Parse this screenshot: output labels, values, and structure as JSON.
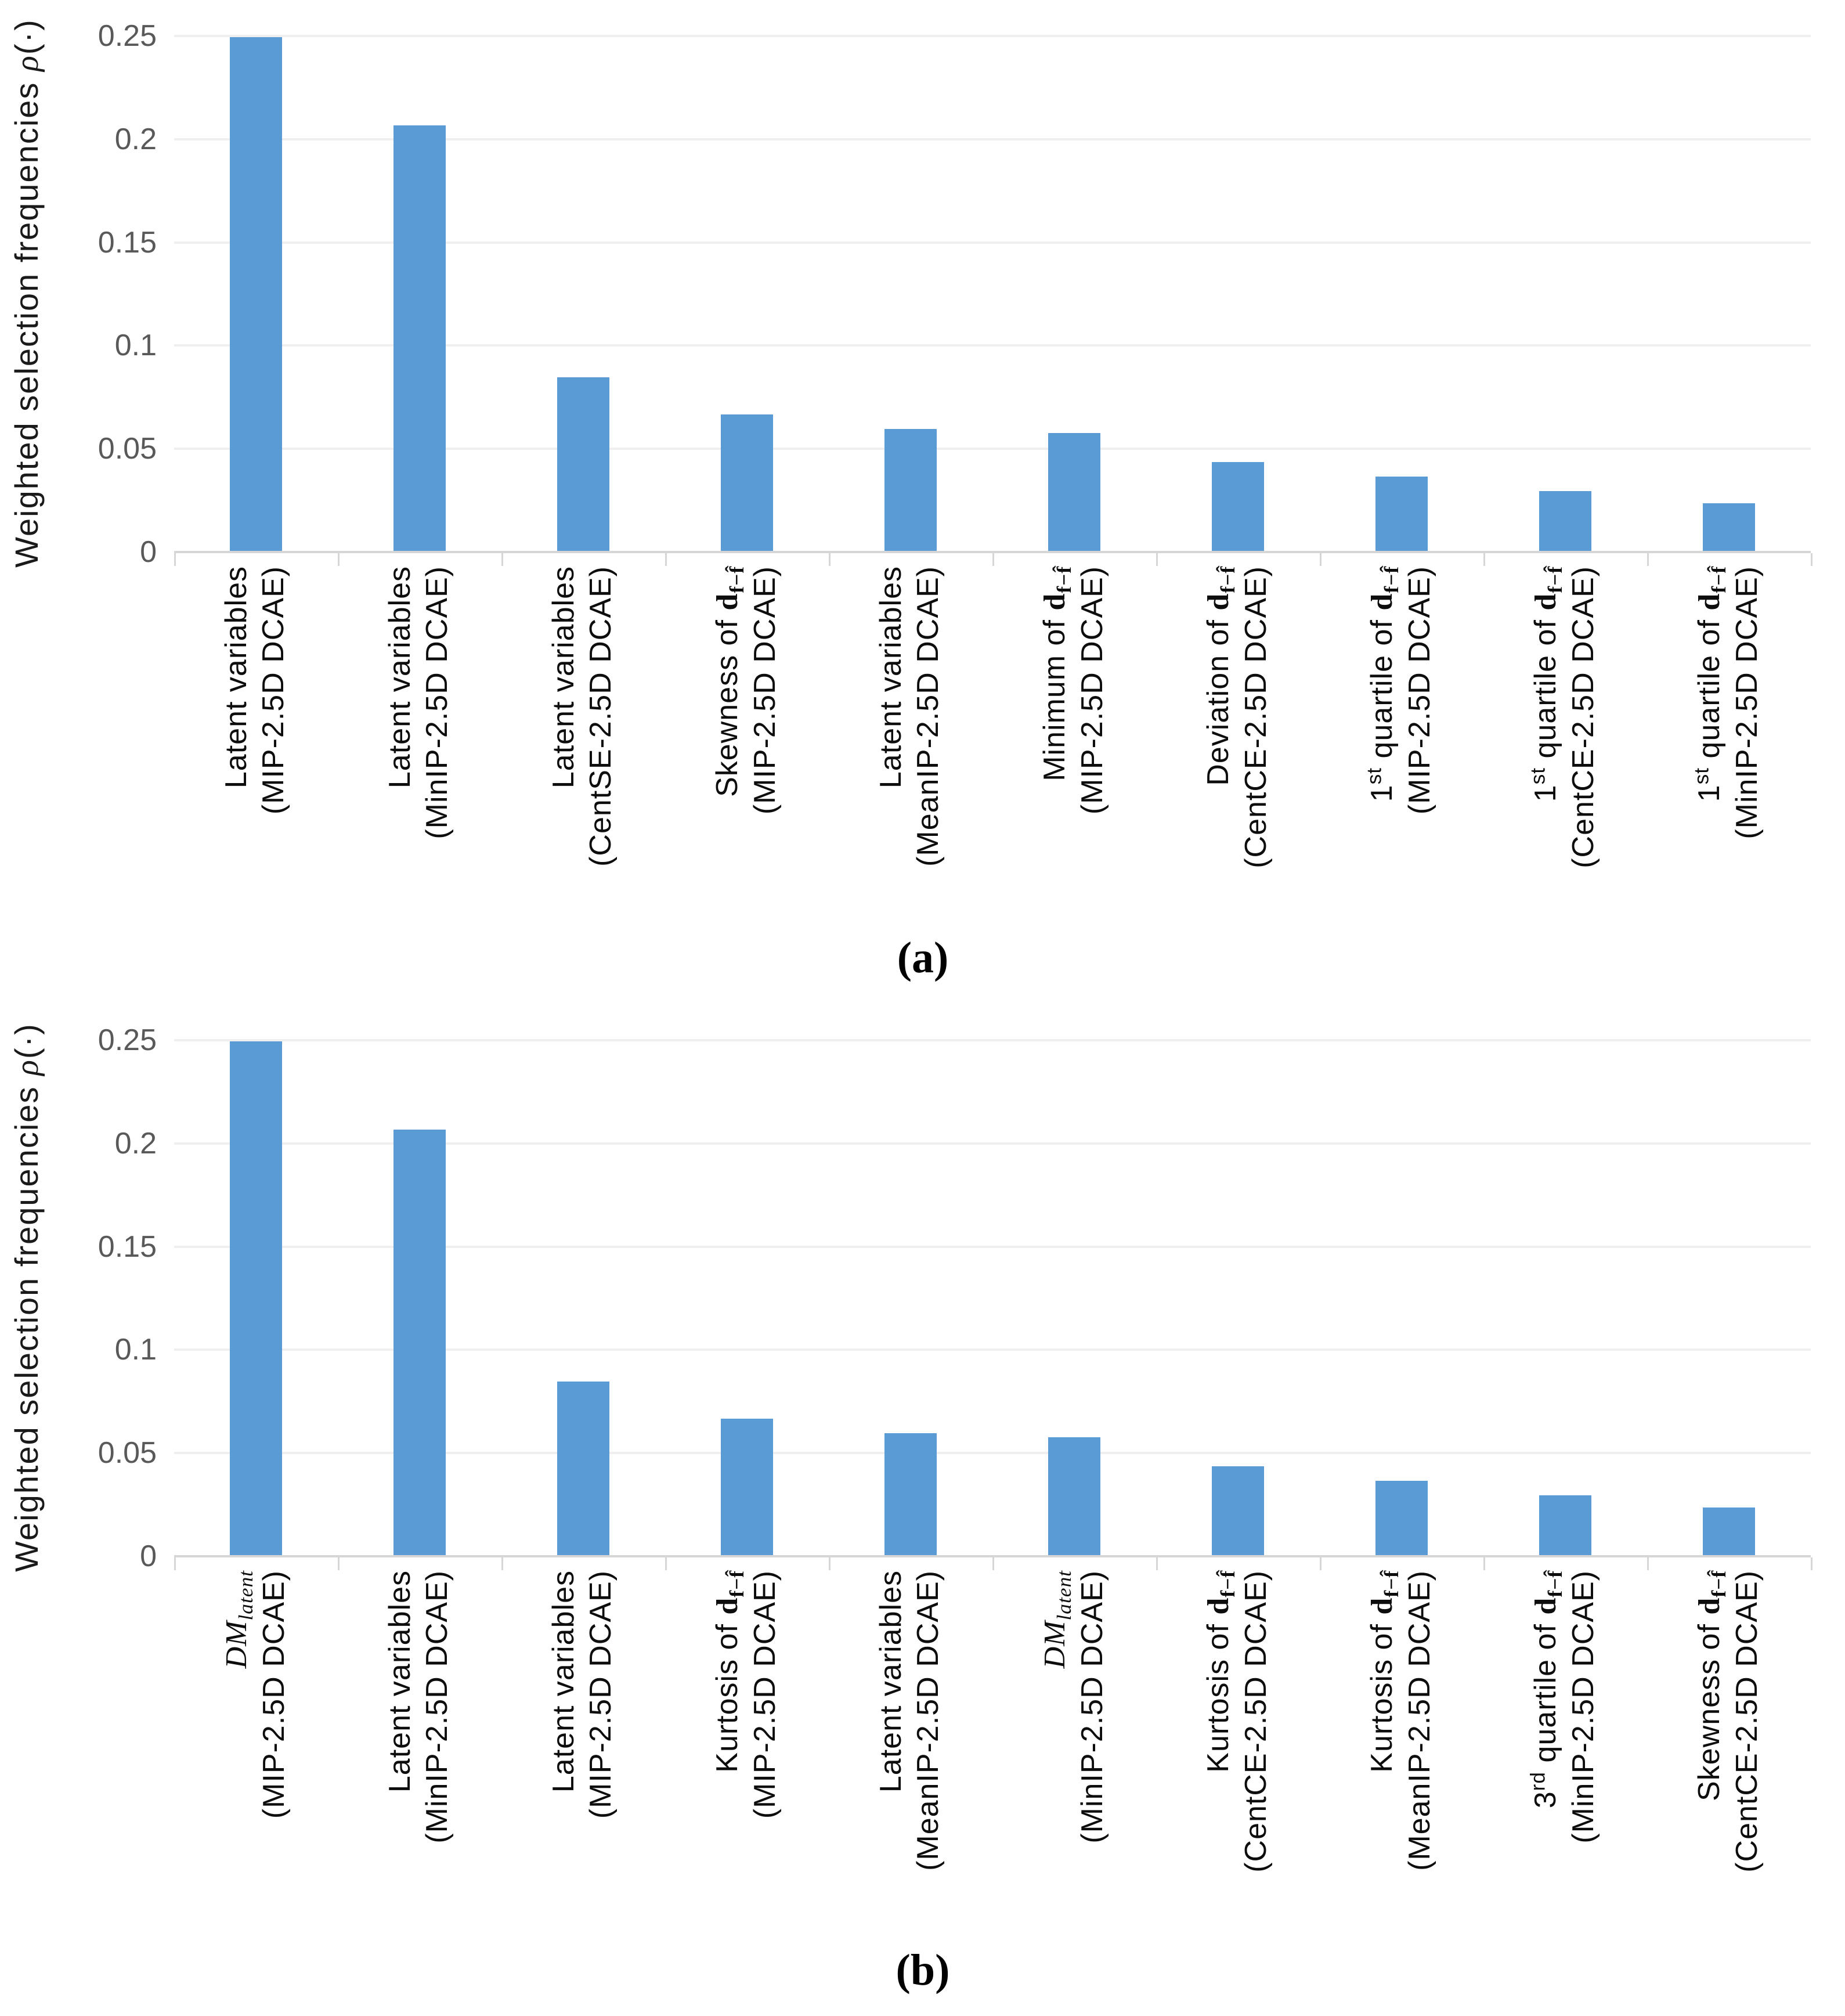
{
  "figure": {
    "ylabel_rich": "Weighted selection frequencies *ρ*(·)",
    "colors": {
      "bar": "#5B9BD5",
      "gridline": "#EFEFEF",
      "baseline": "#D6D6D6",
      "x_tick": "#D6D6D6",
      "ytick_text": "#595959",
      "ytitle_text": "#1A1A1A",
      "xlabel_text": "#0D0D0D",
      "caption_text": "#000000"
    },
    "yticks": [
      {
        "v": 0,
        "label": "0"
      },
      {
        "v": 0.05,
        "label": "0.05"
      },
      {
        "v": 0.1,
        "label": "0.1"
      },
      {
        "v": 0.15,
        "label": "0.15"
      },
      {
        "v": 0.2,
        "label": "0.2"
      },
      {
        "v": 0.25,
        "label": "0.25"
      }
    ]
  },
  "chart_data": [
    {
      "id": "a",
      "type": "bar",
      "caption": "(a)",
      "ylabel": "Weighted selection frequencies ρ(·)",
      "ylim": [
        0,
        0.25
      ],
      "grid": true,
      "legend": "none",
      "categories": [
        "Latent variables (MIP-2.5D DCAE)",
        "Latent variables (MinIP-2.5D DCAE)",
        "Latent variables (CentSE-2.5D DCAE)",
        "Skewness of d_(f−f̂) (MIP-2.5D DCAE)",
        "Latent variables (MeanIP-2.5D DCAE)",
        "Minimum of d_(f−f̂) (MIP-2.5D DCAE)",
        "Deviation of d_(f−f̂) (CentCE-2.5D DCAE)",
        "1st quartile of d_(f−f̂) (MIP-2.5D DCAE)",
        "1st quartile of d_(f−f̂) (CentCE-2.5D DCAE)",
        "1st quartile of d_(f−f̂) (MinIP-2.5D DCAE)"
      ],
      "category_lines_rich": [
        [
          "Latent variables",
          "(MIP-2.5D DCAE)"
        ],
        [
          "Latent variables",
          "(MinIP-2.5D DCAE)"
        ],
        [
          "Latent variables",
          "(CentSE-2.5D DCAE)"
        ],
        [
          "Skewness of **d**~**f−f̂**~",
          "(MIP-2.5D DCAE)"
        ],
        [
          "Latent variables",
          "(MeanIP-2.5D DCAE)"
        ],
        [
          "Minimum of **d**~**f−f̂**~",
          "(MIP-2.5D DCAE)"
        ],
        [
          "Deviation of **d**~**f−f̂**~",
          "(CentCE-2.5D DCAE)"
        ],
        [
          "1^st^ quartile of **d**~**f−f̂**~",
          "(MIP-2.5D DCAE)"
        ],
        [
          "1^st^ quartile of **d**~**f−f̂**~",
          "(CentCE-2.5D DCAE)"
        ],
        [
          "1^st^ quartile of **d**~**f−f̂**~",
          "(MinIP-2.5D DCAE)"
        ]
      ],
      "values": [
        0.249,
        0.206,
        0.084,
        0.066,
        0.059,
        0.057,
        0.043,
        0.036,
        0.029,
        0.023
      ]
    },
    {
      "id": "b",
      "type": "bar",
      "caption": "(b)",
      "ylabel": "Weighted selection frequencies ρ(·)",
      "ylim": [
        0,
        0.25
      ],
      "grid": true,
      "legend": "none",
      "categories": [
        "DM_latent (MIP-2.5D DCAE)",
        "Latent variables (MinIP-2.5D DCAE)",
        "Latent variables (MIP-2.5D DCAE)",
        "Kurtosis of d_(f−f̂) (MIP-2.5D DCAE)",
        "Latent variables (MeanIP-2.5D DCAE)",
        "DM_latent (MinIP-2.5D DCAE)",
        "Kurtosis of d_(f−f̂) (CentCE-2.5D DCAE)",
        "Kurtosis of d_(f−f̂) (MeanIP-2.5D DCAE)",
        "3rd quartile of d_(f−f̂) (MinIP-2.5D DCAE)",
        "Skewness of d_(f−f̂) (CentCE-2.5D DCAE)"
      ],
      "category_lines_rich": [
        [
          "*DM*~*latent*~",
          "(MIP-2.5D DCAE)"
        ],
        [
          "Latent variables",
          "(MinIP-2.5D DCAE)"
        ],
        [
          "Latent variables",
          "(MIP-2.5D DCAE)"
        ],
        [
          "Kurtosis of **d**~**f−f̂**~",
          "(MIP-2.5D DCAE)"
        ],
        [
          "Latent variables",
          "(MeanIP-2.5D DCAE)"
        ],
        [
          "*DM*~*latent*~",
          "(MinIP-2.5D DCAE)"
        ],
        [
          "Kurtosis of **d**~**f−f̂**~",
          "(CentCE-2.5D DCAE)"
        ],
        [
          "Kurtosis of **d**~**f−f̂**~",
          "(MeanIP-2.5D DCAE)"
        ],
        [
          "3^rd^ quartile of **d**~**f−f̂**~",
          "(MinIP-2.5D DCAE)"
        ],
        [
          "Skewness of **d**~**f−f̂**~",
          "(CentCE-2.5D DCAE)"
        ]
      ],
      "values": [
        0.249,
        0.206,
        0.084,
        0.066,
        0.059,
        0.057,
        0.043,
        0.036,
        0.029,
        0.023
      ]
    }
  ]
}
